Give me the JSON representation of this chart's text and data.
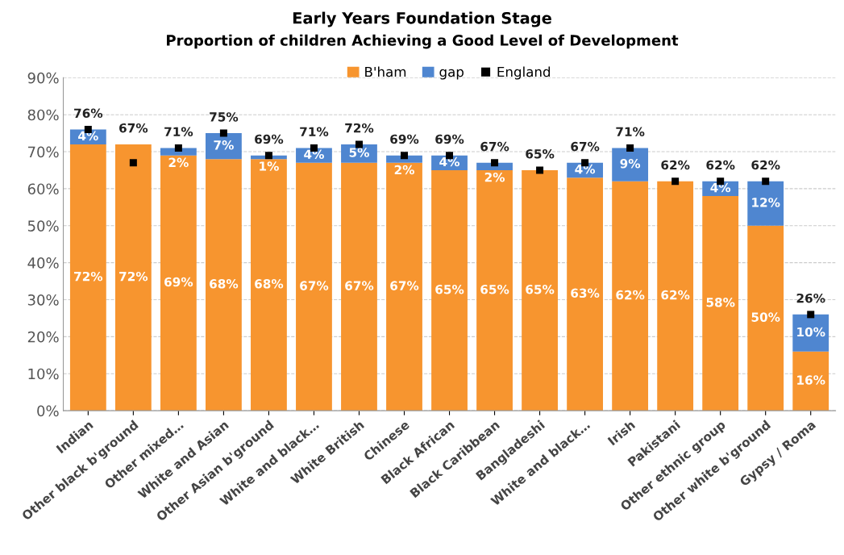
{
  "chart_data": {
    "type": "bar",
    "stacked": true,
    "title": "Early Years Foundation Stage",
    "subtitle": "Proportion of children Achieving a Good Level of Development",
    "categories": [
      "Indian",
      "Other black b'ground",
      "Other mixed…",
      "White and Asian",
      "Other Asian b'ground",
      "White and black…",
      "White British",
      "Chinese",
      "Black African",
      "Black Caribbean",
      "Bangladeshi",
      "White and black…",
      "Irish",
      "Pakistani",
      "Other ethnic group",
      "Other white b'ground",
      "Gypsy / Roma"
    ],
    "series": [
      {
        "name": "B'ham",
        "color": "#f7952f",
        "values": [
          72,
          72,
          69,
          68,
          68,
          67,
          67,
          67,
          65,
          65,
          65,
          63,
          62,
          62,
          58,
          50,
          16
        ],
        "value_labels": [
          "72%",
          "72%",
          "69%",
          "68%",
          "68%",
          "67%",
          "67%",
          "67%",
          "65%",
          "65%",
          "65%",
          "63%",
          "62%",
          "62%",
          "58%",
          "50%",
          "16%"
        ]
      },
      {
        "name": "gap",
        "color": "#4f86d0",
        "values": [
          4,
          null,
          2,
          7,
          1,
          4,
          5,
          2,
          4,
          2,
          null,
          4,
          9,
          null,
          4,
          12,
          10
        ],
        "value_labels": [
          "4%",
          null,
          "2%",
          "7%",
          "1%",
          "4%",
          "5%",
          "2%",
          "4%",
          "2%",
          null,
          "4%",
          "9%",
          null,
          "4%",
          "12%",
          "10%"
        ]
      },
      {
        "name": "England",
        "type": "scatter",
        "marker": "square",
        "color": "#000000",
        "values": [
          76,
          67,
          71,
          75,
          69,
          71,
          72,
          69,
          69,
          67,
          65,
          67,
          71,
          62,
          62,
          62,
          26
        ],
        "value_labels": [
          "76%",
          "67%",
          "71%",
          "75%",
          "69%",
          "71%",
          "72%",
          "69%",
          "69%",
          "67%",
          "65%",
          "67%",
          "71%",
          "62%",
          "62%",
          "62%",
          "26%"
        ]
      }
    ],
    "ylim": [
      0,
      90
    ],
    "yticks": [
      {
        "value": 0,
        "label": "0%"
      },
      {
        "value": 10,
        "label": "10%"
      },
      {
        "value": 20,
        "label": "20%"
      },
      {
        "value": 30,
        "label": "30%"
      },
      {
        "value": 40,
        "label": "40%"
      },
      {
        "value": 50,
        "label": "50%"
      },
      {
        "value": 60,
        "label": "60%"
      },
      {
        "value": 70,
        "label": "70%"
      },
      {
        "value": 80,
        "label": "80%"
      },
      {
        "value": 90,
        "label": "90%"
      }
    ],
    "grid": "y",
    "legend": "top"
  }
}
